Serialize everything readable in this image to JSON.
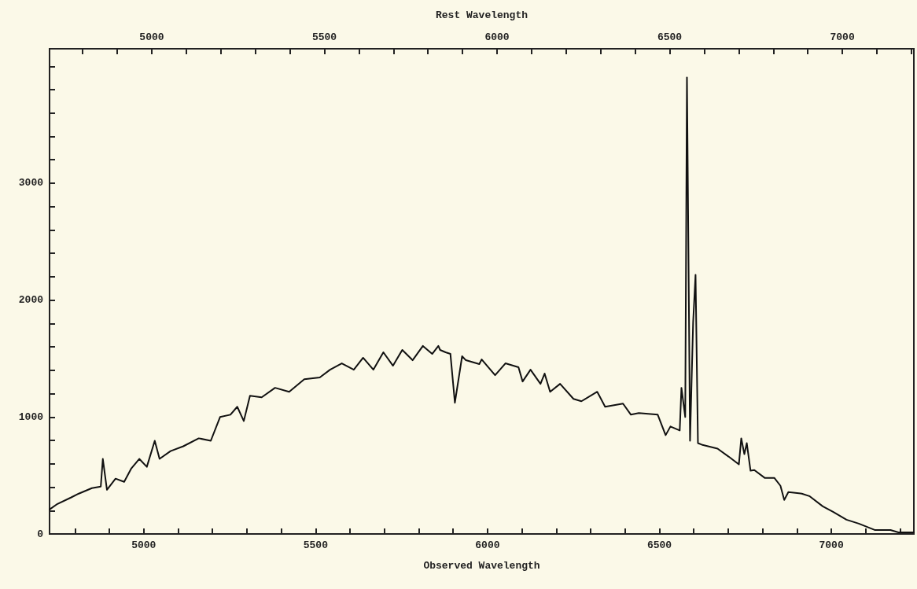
{
  "chart_data": {
    "type": "line",
    "xlabel": "Observed Wavelength",
    "x2label": "Rest Wavelength",
    "xlim": [
      4726,
      7240
    ],
    "xticks": [
      {
        "value": 4800,
        "label": null
      },
      {
        "value": 4900,
        "label": null
      },
      5000,
      {
        "value": 5100,
        "label": null
      },
      {
        "value": 5200,
        "label": null
      },
      {
        "value": 5300,
        "label": null
      },
      {
        "value": 5400,
        "label": null
      },
      5500,
      {
        "value": 5600,
        "label": null
      },
      {
        "value": 5700,
        "label": null
      },
      {
        "value": 5800,
        "label": null
      },
      {
        "value": 5900,
        "label": null
      },
      6000,
      {
        "value": 6100,
        "label": null
      },
      {
        "value": 6200,
        "label": null
      },
      {
        "value": 6300,
        "label": null
      },
      {
        "value": 6400,
        "label": null
      },
      6500,
      {
        "value": 6600,
        "label": null
      },
      {
        "value": 6700,
        "label": null
      },
      {
        "value": 6800,
        "label": null
      },
      {
        "value": 6900,
        "label": null
      },
      7000,
      {
        "value": 7100,
        "label": null
      },
      {
        "value": 7200,
        "label": null
      }
    ],
    "x2lim": [
      4704,
      7207
    ],
    "x2ticks": [
      {
        "value": 4800,
        "label": null
      },
      {
        "value": 4900,
        "label": null
      },
      5000,
      {
        "value": 5100,
        "label": null
      },
      {
        "value": 5200,
        "label": null
      },
      {
        "value": 5300,
        "label": null
      },
      {
        "value": 5400,
        "label": null
      },
      5500,
      {
        "value": 5600,
        "label": null
      },
      {
        "value": 5700,
        "label": null
      },
      {
        "value": 5800,
        "label": null
      },
      {
        "value": 5900,
        "label": null
      },
      6000,
      {
        "value": 6100,
        "label": null
      },
      {
        "value": 6200,
        "label": null
      },
      {
        "value": 6300,
        "label": null
      },
      {
        "value": 6400,
        "label": null
      },
      6500,
      {
        "value": 6600,
        "label": null
      },
      {
        "value": 6700,
        "label": null
      },
      {
        "value": 6800,
        "label": null
      },
      {
        "value": 6900,
        "label": null
      },
      7000,
      {
        "value": 7100,
        "label": null
      },
      {
        "value": 7200,
        "label": null
      }
    ],
    "ylim": [
      0,
      4150
    ],
    "yticks": [
      0,
      {
        "value": 200,
        "label": null
      },
      {
        "value": 400,
        "label": null
      },
      {
        "value": 600,
        "label": null
      },
      {
        "value": 800,
        "label": null
      },
      1000,
      {
        "value": 1200,
        "label": null
      },
      {
        "value": 1400,
        "label": null
      },
      {
        "value": 1600,
        "label": null
      },
      {
        "value": 1800,
        "label": null
      },
      2000,
      {
        "value": 2200,
        "label": null
      },
      {
        "value": 2400,
        "label": null
      },
      {
        "value": 2600,
        "label": null
      },
      {
        "value": 2800,
        "label": null
      },
      3000,
      {
        "value": 3200,
        "label": null
      },
      {
        "value": 3400,
        "label": null
      },
      {
        "value": 3600,
        "label": null
      },
      {
        "value": 3800,
        "label": null
      },
      {
        "value": 4000,
        "label": null
      }
    ],
    "grid": false,
    "marker": "none",
    "line_style": "solid",
    "series": [
      {
        "color": "#111111",
        "x": [
          4726,
          4749,
          4788,
          4811,
          4849,
          4875,
          4881,
          4893,
          4918,
          4943,
          4964,
          4987,
          5009,
          5032,
          5046,
          5078,
          5115,
          5160,
          5195,
          5222,
          5252,
          5272,
          5291,
          5309,
          5343,
          5382,
          5423,
          5467,
          5512,
          5542,
          5576,
          5611,
          5638,
          5668,
          5697,
          5725,
          5752,
          5782,
          5812,
          5839,
          5857,
          5862,
          5878,
          5892,
          5905,
          5926,
          5937,
          5976,
          5983,
          6022,
          6052,
          6090,
          6102,
          6125,
          6154,
          6166,
          6182,
          6211,
          6250,
          6273,
          6319,
          6342,
          6394,
          6417,
          6440,
          6495,
          6518,
          6532,
          6559,
          6564,
          6575,
          6580,
          6589,
          6598,
          6605,
          6612,
          6623,
          6669,
          6701,
          6731,
          6738,
          6747,
          6754,
          6765,
          6776,
          6806,
          6834,
          6852,
          6863,
          6875,
          6914,
          6936,
          6975,
          7005,
          7044,
          7080,
          7126,
          7172,
          7195,
          7240
        ],
        "values": [
          209,
          257,
          311,
          345,
          392,
          405,
          642,
          378,
          473,
          446,
          561,
          642,
          574,
          797,
          642,
          709,
          750,
          818,
          797,
          1000,
          1020,
          1088,
          966,
          1182,
          1169,
          1250,
          1216,
          1324,
          1338,
          1405,
          1459,
          1405,
          1507,
          1405,
          1554,
          1439,
          1574,
          1486,
          1608,
          1540,
          1608,
          1574,
          1554,
          1540,
          1122,
          1520,
          1486,
          1453,
          1493,
          1358,
          1459,
          1426,
          1304,
          1405,
          1284,
          1372,
          1216,
          1284,
          1155,
          1135,
          1216,
          1088,
          1115,
          1020,
          1034,
          1020,
          845,
          919,
          885,
          1250,
          1000,
          3905,
          797,
          1811,
          2216,
          777,
          764,
          730,
          662,
          595,
          818,
          682,
          777,
          541,
          547,
          480,
          480,
          412,
          291,
          358,
          345,
          324,
          236,
          189,
          122,
          88,
          34,
          34,
          14,
          14
        ]
      }
    ]
  }
}
